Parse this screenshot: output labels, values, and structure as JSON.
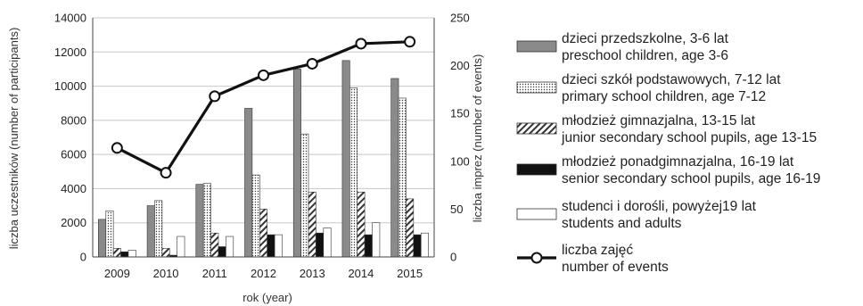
{
  "chart_data": {
    "type": "bar",
    "xlabel": "rok (year)",
    "ylabel": "liczba uczestników (number of participants)",
    "y2label": "liczba imprez (number of events)",
    "ylim": [
      0,
      14000
    ],
    "y2lim": [
      0,
      250
    ],
    "y_ticks": [
      "0",
      "2000",
      "4000",
      "6000",
      "8000",
      "10000",
      "12000",
      "14000"
    ],
    "y2_ticks": [
      "0",
      "50",
      "100",
      "150",
      "200",
      "250"
    ],
    "categories": [
      "2009",
      "2010",
      "2011",
      "2012",
      "2013",
      "2014",
      "2015"
    ],
    "series": [
      {
        "name": "dzieci przedszkolne, 3-6 lat",
        "name_en": "preschool children, age 3-6",
        "pattern": "solid-gray",
        "values": [
          2200,
          3000,
          4250,
          8700,
          11000,
          11500,
          10450
        ]
      },
      {
        "name": "dzieci szkół podstawowych, 7-12 lat",
        "name_en": "primary school children, age 7-12",
        "pattern": "dots",
        "values": [
          2700,
          3300,
          4300,
          4800,
          7200,
          9900,
          9300
        ]
      },
      {
        "name": "młodzież gimnazjalna, 13-15 lat",
        "name_en": "junior secondary school pupils, age 13-15",
        "pattern": "diagonal-hatch",
        "values": [
          500,
          500,
          1400,
          2800,
          3800,
          3800,
          3400
        ]
      },
      {
        "name": "młodzież ponadgimnazjalna, 16-19 lat",
        "name_en": "senior secondary school pupils, age 16-19",
        "pattern": "solid-black",
        "values": [
          300,
          100,
          600,
          1300,
          1400,
          1300,
          1300
        ]
      },
      {
        "name": "studenci i dorośli, powyżej19 lat",
        "name_en": "students and adults",
        "pattern": "white",
        "values": [
          400,
          1200,
          1200,
          1300,
          1700,
          2000,
          1400
        ]
      }
    ],
    "line_series": {
      "name": "liczba zajęć",
      "name_en": "number of events",
      "axis": "right",
      "values": [
        114,
        88,
        168,
        190,
        202,
        223,
        225
      ]
    },
    "legend_position": "right",
    "grid": "horizontal"
  },
  "colors": {
    "bar_gray": "#8a8a8a",
    "bar_black": "#111111",
    "grid": "#c8c8c8",
    "line": "#111111"
  }
}
